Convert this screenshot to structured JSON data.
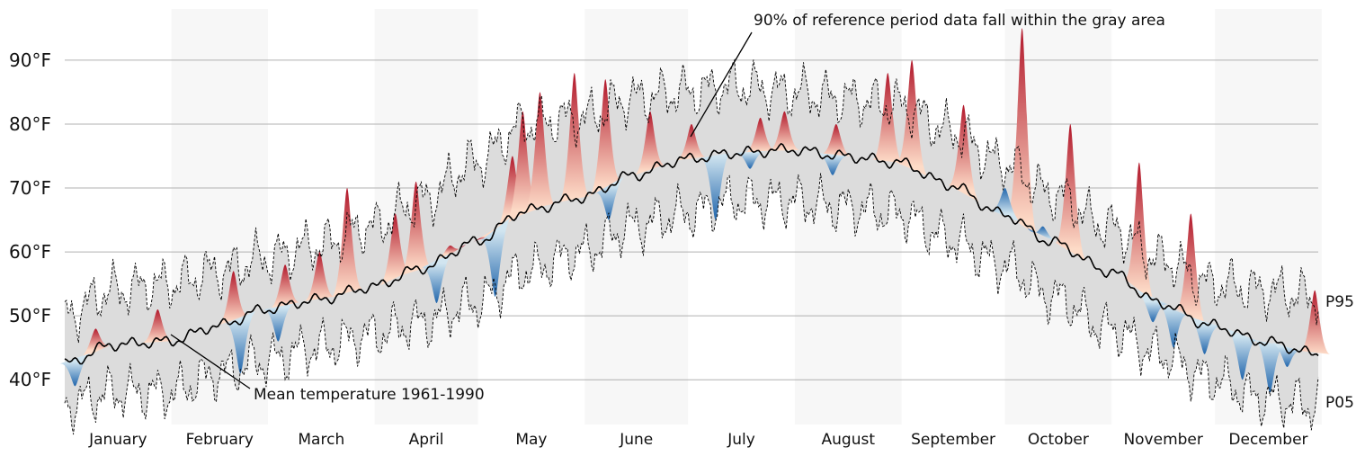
{
  "chart_data": {
    "type": "area",
    "title": "",
    "xlabel": "",
    "ylabel": "",
    "ylim": [
      33,
      98
    ],
    "y_ticks": [
      "40°F",
      "50°F",
      "60°F",
      "70°F",
      "80°F",
      "90°F"
    ],
    "y_tick_values": [
      40,
      50,
      60,
      70,
      80,
      90
    ],
    "grid": "horizontal",
    "months": [
      "January",
      "February",
      "March",
      "April",
      "May",
      "June",
      "July",
      "August",
      "September",
      "October",
      "November",
      "December"
    ],
    "month_days": [
      31,
      28,
      31,
      30,
      31,
      30,
      31,
      31,
      30,
      31,
      30,
      31
    ],
    "shaded_months": [
      1,
      3,
      5,
      7,
      9,
      11
    ],
    "band_labels": {
      "upper": "P95",
      "lower": "P05"
    },
    "annotations": {
      "band": "90% of reference period data fall within the gray area",
      "mean": "Mean temperature 1961-1990"
    },
    "colors": {
      "band": "#dcdcdc",
      "mean_line": "#000000",
      "warm_dark": "#b2182b",
      "warm_light": "#fddbc7",
      "cold_dark": "#2166ac",
      "cold_light": "#d1e5f0",
      "shade": "#f7f7f7",
      "grid": "#b0b0b0"
    },
    "series": [
      {
        "name": "Mean temperature 1961-1990",
        "x": [
          1,
          15,
          31,
          46,
          59,
          74,
          90,
          105,
          120,
          135,
          151,
          166,
          181,
          196,
          212,
          227,
          243,
          258,
          273,
          288,
          304,
          319,
          334,
          349,
          365
        ],
        "values": [
          42.5,
          45.5,
          46.0,
          48.5,
          51.0,
          52.5,
          54.5,
          57.5,
          61.5,
          66.5,
          68.5,
          72.0,
          74.5,
          75.5,
          76.0,
          75.0,
          74.0,
          70.5,
          66.0,
          61.5,
          57.0,
          52.0,
          48.5,
          46.0,
          44.0
        ]
      },
      {
        "name": "P95",
        "x": [
          1,
          15,
          31,
          46,
          59,
          74,
          90,
          105,
          120,
          135,
          151,
          166,
          181,
          196,
          212,
          227,
          243,
          258,
          273,
          288,
          304,
          319,
          334,
          349,
          365
        ],
        "values": [
          50,
          54,
          55,
          57,
          59,
          61,
          64,
          68,
          74,
          80,
          81,
          84,
          85,
          86,
          85,
          84,
          83,
          79,
          74,
          69,
          64,
          59,
          55,
          54,
          53
        ]
      },
      {
        "name": "P05",
        "x": [
          1,
          15,
          31,
          46,
          59,
          74,
          90,
          105,
          120,
          135,
          151,
          166,
          181,
          196,
          212,
          227,
          243,
          258,
          273,
          288,
          304,
          319,
          334,
          349,
          365
        ],
        "values": [
          36,
          38,
          38,
          41,
          43,
          45,
          47,
          49,
          52,
          57,
          60,
          64,
          66,
          68,
          68,
          67,
          66,
          62,
          58,
          53,
          48,
          44,
          40,
          37,
          36
        ]
      },
      {
        "name": "warm anomalies",
        "values": [
          [
            10,
            48
          ],
          [
            28,
            51
          ],
          [
            50,
            57
          ],
          [
            65,
            58
          ],
          [
            75,
            60
          ],
          [
            83,
            70
          ],
          [
            97,
            66
          ],
          [
            103,
            71
          ],
          [
            113,
            61
          ],
          [
            124,
            62
          ],
          [
            131,
            75
          ],
          [
            134,
            82
          ],
          [
            139,
            85
          ],
          [
            149,
            88
          ],
          [
            158,
            87
          ],
          [
            171,
            82
          ],
          [
            183,
            80
          ],
          [
            203,
            81
          ],
          [
            210,
            82
          ],
          [
            225,
            80
          ],
          [
            240,
            88
          ],
          [
            247,
            90
          ],
          [
            262,
            83
          ],
          [
            279,
            95
          ],
          [
            293,
            80
          ],
          [
            313,
            74
          ],
          [
            328,
            66
          ],
          [
            364,
            54
          ]
        ]
      },
      {
        "name": "cold anomalies",
        "values": [
          [
            4,
            39
          ],
          [
            52,
            41
          ],
          [
            63,
            46
          ],
          [
            109,
            52
          ],
          [
            126,
            53
          ],
          [
            159,
            65
          ],
          [
            190,
            65
          ],
          [
            200,
            73
          ],
          [
            224,
            72
          ],
          [
            274,
            70
          ],
          [
            285,
            64
          ],
          [
            317,
            49
          ],
          [
            323,
            45
          ],
          [
            332,
            44
          ],
          [
            343,
            40
          ],
          [
            351,
            38
          ],
          [
            356,
            42
          ]
        ]
      }
    ]
  }
}
